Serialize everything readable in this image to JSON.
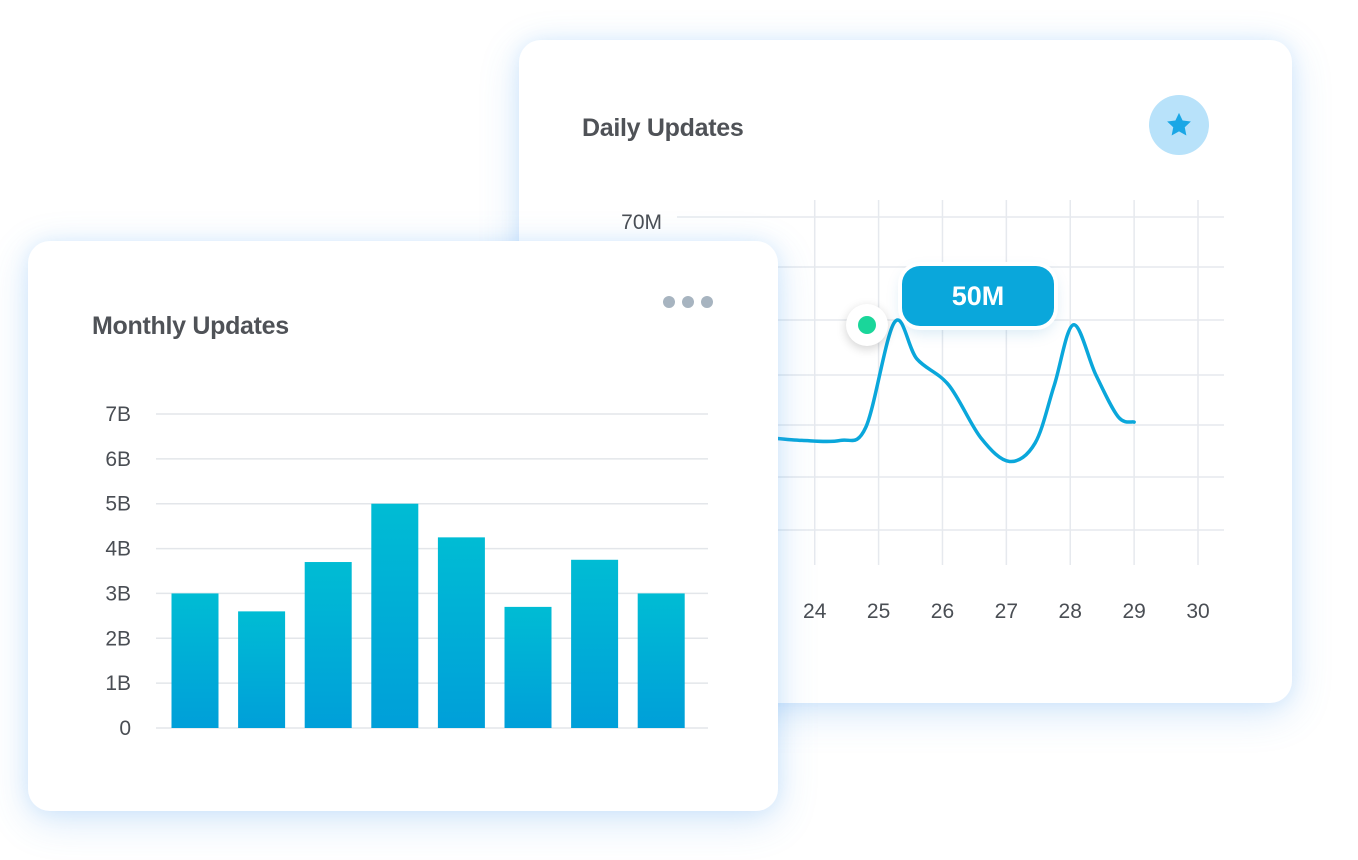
{
  "daily_card": {
    "title": "Daily Updates",
    "icon": "star-icon",
    "accent_color": "#0aa7db",
    "point_color": "#1ad69a",
    "tooltip_text": "50M"
  },
  "monthly_card": {
    "title": "Monthly Updates",
    "menu_icon": "more-dots-icon"
  },
  "chart_data": [
    {
      "type": "line",
      "title": "Daily Updates",
      "xlabel": "",
      "ylabel": "",
      "y_ticks": [
        "70M"
      ],
      "x_ticks": [
        "24",
        "25",
        "26",
        "27",
        "28",
        "29",
        "30"
      ],
      "xlim": [
        23.3,
        30
      ],
      "ylim": [
        0,
        70
      ],
      "x": [
        23.3,
        23.8,
        24.4,
        24.8,
        25.25,
        25.6,
        26.1,
        26.6,
        27.05,
        27.45,
        27.75,
        28.05,
        28.4,
        28.75,
        29.0
      ],
      "y": [
        28,
        27.5,
        27.5,
        30,
        50,
        43,
        38,
        28,
        23.5,
        27,
        38,
        49.5,
        40,
        32,
        31
      ],
      "highlight": {
        "x": 25.25,
        "y": 50,
        "label": "50M"
      },
      "grid": true,
      "legend": "none"
    },
    {
      "type": "bar",
      "title": "Monthly Updates",
      "xlabel": "",
      "ylabel": "",
      "categories": [
        "",
        "",
        "",
        "",
        "",
        "",
        "",
        ""
      ],
      "values": [
        3.0,
        2.6,
        3.7,
        5.0,
        4.25,
        2.7,
        3.75,
        3.0
      ],
      "y_ticks": [
        "0",
        "1B",
        "2B",
        "3B",
        "4B",
        "5B",
        "6B",
        "7B"
      ],
      "ylim": [
        0,
        7
      ],
      "grid": true,
      "legend": "none",
      "bar_color_top": "#00bcd4",
      "bar_color_bottom": "#009fd9"
    }
  ]
}
